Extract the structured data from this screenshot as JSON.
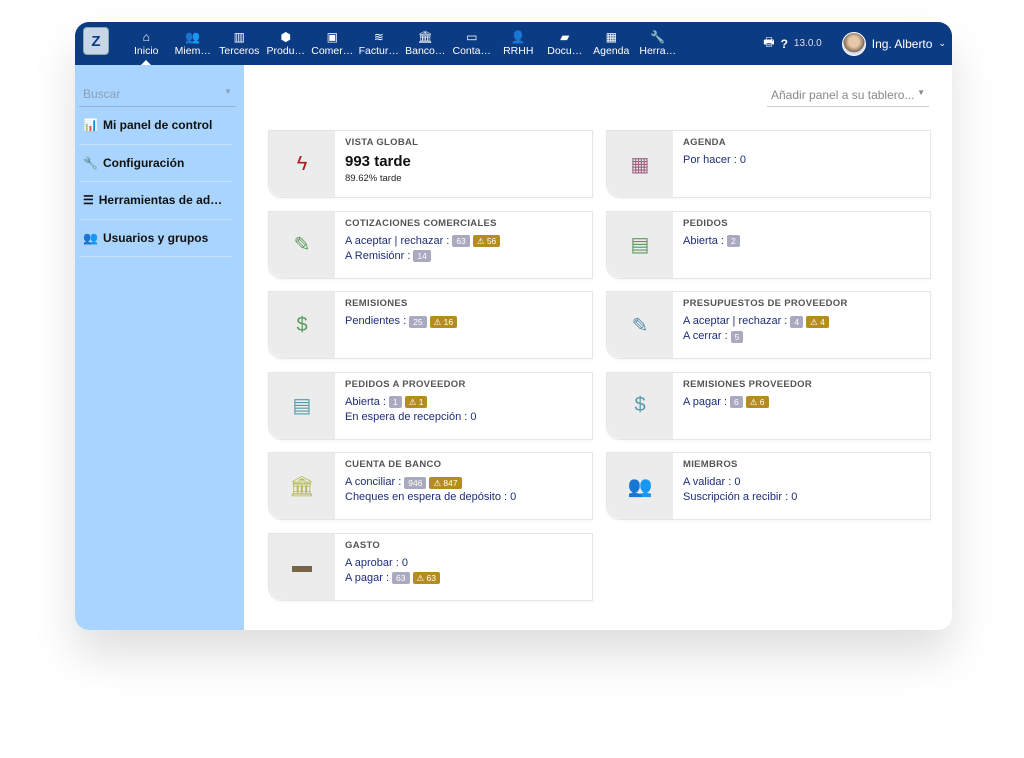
{
  "topbar": {
    "logo": "Z",
    "menu": [
      {
        "label": "Inicio",
        "icon": "home-icon",
        "g": "⌂",
        "active": true
      },
      {
        "label": "Miem…",
        "icon": "users-icon",
        "g": "👥"
      },
      {
        "label": "Terceros",
        "icon": "building-icon",
        "g": "▥"
      },
      {
        "label": "Produ…",
        "icon": "cube-icon",
        "g": "⬢"
      },
      {
        "label": "Comer…",
        "icon": "briefcase-icon",
        "g": "▣"
      },
      {
        "label": "Factur…",
        "icon": "coins-icon",
        "g": "≋"
      },
      {
        "label": "Banco…",
        "icon": "bank-icon",
        "g": "🏛"
      },
      {
        "label": "Conta…",
        "icon": "money-check-icon",
        "g": "▭"
      },
      {
        "label": "RRHH",
        "icon": "user-tie-icon",
        "g": "👤"
      },
      {
        "label": "Docu…",
        "icon": "folder-open-icon",
        "g": "▰"
      },
      {
        "label": "Agenda",
        "icon": "calendar-icon",
        "g": "▦"
      },
      {
        "label": "Herra…",
        "icon": "wrench-icon",
        "g": "🔧"
      }
    ],
    "version": "13.0.0",
    "user": "Ing. Alberto"
  },
  "sidebar": {
    "search_placeholder": "Buscar",
    "items": [
      {
        "label": "Mi panel de control",
        "icon": "chart-bar-icon",
        "g": "📊"
      },
      {
        "label": "Configuración",
        "icon": "wrench-icon",
        "g": "🔧"
      },
      {
        "label": "Herramientas de ad…",
        "icon": "server-icon",
        "g": "☰"
      },
      {
        "label": "Usuarios y grupos",
        "icon": "users-icon",
        "g": "👥"
      }
    ]
  },
  "main": {
    "add_panel_placeholder": "Añadir panel a su tablero...",
    "cards": [
      {
        "title": "VISTA GLOBAL",
        "icon": "bolt-icon",
        "g": "ϟ",
        "color": "#a32020",
        "big": "993 tarde",
        "sub": "89.62% tarde"
      },
      {
        "title": "AGENDA",
        "icon": "calendar-icon",
        "g": "▦",
        "color": "#a06080",
        "lines": [
          {
            "text": "Por hacer : 0"
          }
        ]
      },
      {
        "title": "COTIZACIONES COMERCIALES",
        "icon": "file-signature-icon",
        "g": "✎",
        "color": "#5c9a5c",
        "lines": [
          {
            "text": "A aceptar | rechazar :",
            "badges": [
              "63"
            ],
            "warn": "56"
          },
          {
            "text": "A Remisiónr :",
            "badges": [
              "14"
            ]
          }
        ]
      },
      {
        "title": "PEDIDOS",
        "icon": "file-invoice-icon",
        "g": "▤",
        "color": "#5c9a5c",
        "lines": [
          {
            "text": "Abierta :",
            "badges": [
              "2"
            ]
          }
        ]
      },
      {
        "title": "REMISIONES",
        "icon": "file-invoice-dollar-icon",
        "g": "$",
        "color": "#5c9a5c",
        "lines": [
          {
            "text": "Pendientes :",
            "badges": [
              "25"
            ],
            "warn": "16"
          }
        ]
      },
      {
        "title": "PRESUPUESTOS DE PROVEEDOR",
        "icon": "file-signature-icon",
        "g": "✎",
        "color": "#5a8fa8",
        "lines": [
          {
            "text": "A aceptar | rechazar :",
            "badges": [
              "4"
            ],
            "warn": "4"
          },
          {
            "text": "A cerrar :",
            "badges": [
              "5"
            ]
          }
        ]
      },
      {
        "title": "PEDIDOS A PROVEEDOR",
        "icon": "file-invoice-icon",
        "g": "▤",
        "color": "#5a9aa8",
        "lines": [
          {
            "text": "Abierta :",
            "badges": [
              "1"
            ],
            "warn": "1"
          },
          {
            "text": "En espera de recepción : 0"
          }
        ]
      },
      {
        "title": "REMISIONES PROVEEDOR",
        "icon": "file-invoice-dollar-icon",
        "g": "$",
        "color": "#5a9aa8",
        "lines": [
          {
            "text": "A pagar :",
            "badges": [
              "6"
            ],
            "warn": "6"
          }
        ]
      },
      {
        "title": "CUENTA DE BANCO",
        "icon": "bank-icon",
        "g": "🏛",
        "color": "#b5b84a",
        "lines": [
          {
            "text": "A conciliar :",
            "badges": [
              "946"
            ],
            "warn": "847"
          },
          {
            "text": "Cheques en espera de depósito : 0"
          }
        ]
      },
      {
        "title": "MIEMBROS",
        "icon": "users-icon",
        "g": "👥",
        "color": "#666",
        "lines": [
          {
            "text": "A validar : 0"
          },
          {
            "text": "Suscripción a recibir : 0"
          }
        ]
      },
      {
        "title": "GASTO",
        "icon": "wallet-icon",
        "g": "▬",
        "color": "#7a6448",
        "lines": [
          {
            "text": "A aprobar : 0"
          },
          {
            "text": "A pagar :",
            "badges": [
              "63"
            ],
            "warn": "63"
          }
        ]
      }
    ]
  },
  "colors": {
    "topbar": "#0b3b82",
    "sidebar": "#a8d4fd",
    "warning_badge": "#b58c1f",
    "count_badge": "#a9a9bf"
  }
}
